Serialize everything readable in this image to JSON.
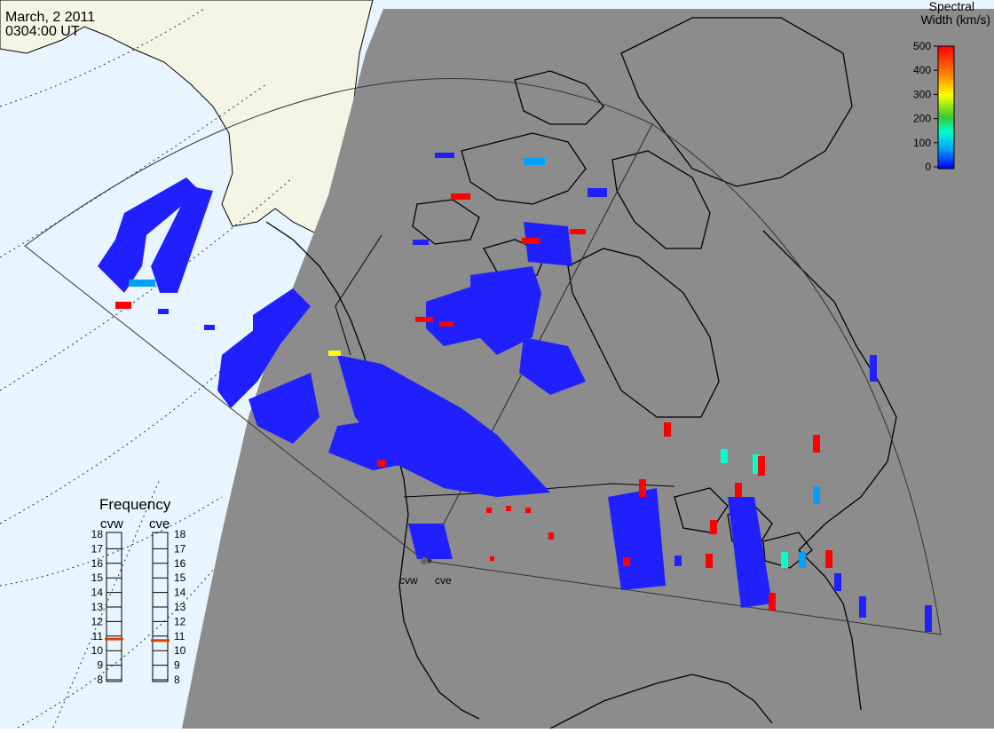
{
  "header": {
    "date": "March, 2 2011",
    "time": "0304:00 UT"
  },
  "colorbar": {
    "title_line1": "Spectral",
    "title_line2": "Width (km/s)",
    "ticks": [
      "500",
      "400",
      "300",
      "200",
      "100",
      "0"
    ],
    "range": [
      0,
      500
    ],
    "colors": [
      "#0000ff",
      "#00a0ff",
      "#00ffcc",
      "#33cc33",
      "#ffff00",
      "#ff8800",
      "#ff0000"
    ]
  },
  "frequency_panel": {
    "title": "Frequency",
    "radar_left": "cvw",
    "radar_right": "cve",
    "ticks": [
      "18",
      "17",
      "16",
      "15",
      "14",
      "13",
      "12",
      "11",
      "10",
      "9",
      "8"
    ],
    "cvw_frequency_mhz": 10.8,
    "cve_frequency_mhz": 10.7,
    "marker_color": "#e04000"
  },
  "radar_sites": {
    "west_label": "cvw",
    "east_label": "cve"
  },
  "colors": {
    "ocean": "#e8f5ff",
    "land_day": "#f5f5e6",
    "night_shade": "#8c8c8c",
    "coastline": "#000000",
    "data_blue": "#2020ff"
  }
}
